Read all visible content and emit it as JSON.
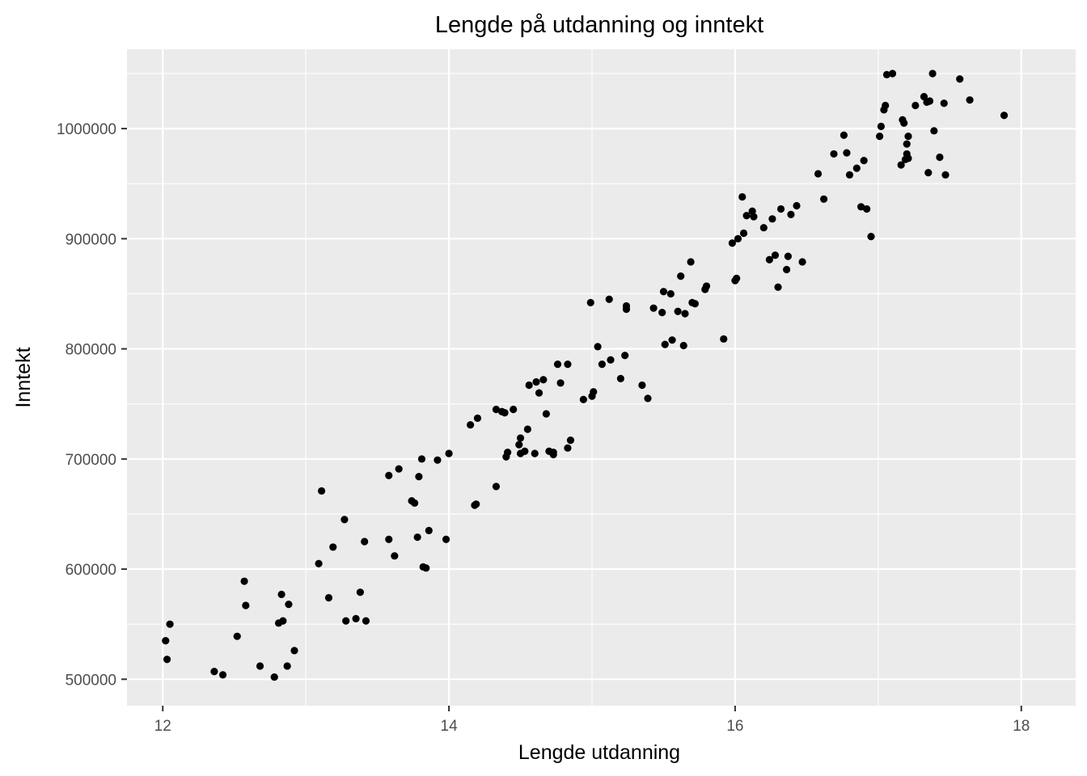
{
  "chart_data": {
    "type": "scatter",
    "title": "Lengde på utdanning og inntekt",
    "xlabel": "Lengde utdanning",
    "ylabel": "Inntekt",
    "xlim": [
      11.75,
      18.38
    ],
    "ylim": [
      476000,
      1072000
    ],
    "x_ticks": [
      12,
      14,
      16,
      18
    ],
    "x_tick_labels": [
      "12",
      "14",
      "16",
      "18"
    ],
    "y_ticks": [
      500000,
      600000,
      700000,
      800000,
      900000,
      1000000
    ],
    "y_tick_labels": [
      "500000",
      "600000",
      "700000",
      "800000",
      "900000",
      "1000000"
    ],
    "grid": true,
    "legend": "none",
    "colors": {
      "panel": "#ebebeb",
      "grid": "#ffffff",
      "point": "#000000"
    },
    "points": [
      [
        12.02,
        535000
      ],
      [
        12.03,
        518000
      ],
      [
        12.05,
        550000
      ],
      [
        12.36,
        507000
      ],
      [
        12.42,
        504000
      ],
      [
        12.52,
        539000
      ],
      [
        12.57,
        589000
      ],
      [
        12.58,
        567000
      ],
      [
        12.68,
        512000
      ],
      [
        12.78,
        502000
      ],
      [
        12.81,
        551000
      ],
      [
        12.83,
        577000
      ],
      [
        12.84,
        553000
      ],
      [
        12.87,
        512000
      ],
      [
        12.88,
        568000
      ],
      [
        12.92,
        526000
      ],
      [
        13.09,
        605000
      ],
      [
        13.11,
        671000
      ],
      [
        13.16,
        574000
      ],
      [
        13.19,
        620000
      ],
      [
        13.27,
        645000
      ],
      [
        13.28,
        553000
      ],
      [
        13.35,
        555000
      ],
      [
        13.38,
        579000
      ],
      [
        13.41,
        625000
      ],
      [
        13.42,
        553000
      ],
      [
        13.58,
        685000
      ],
      [
        13.58,
        627000
      ],
      [
        13.62,
        612000
      ],
      [
        13.65,
        691000
      ],
      [
        13.74,
        662000
      ],
      [
        13.76,
        660000
      ],
      [
        13.78,
        629000
      ],
      [
        13.79,
        684000
      ],
      [
        13.81,
        700000
      ],
      [
        13.82,
        602000
      ],
      [
        13.84,
        601000
      ],
      [
        13.86,
        635000
      ],
      [
        13.92,
        699000
      ],
      [
        13.98,
        627000
      ],
      [
        14.0,
        705000
      ],
      [
        14.15,
        731000
      ],
      [
        14.18,
        658000
      ],
      [
        14.19,
        659000
      ],
      [
        14.2,
        737000
      ],
      [
        14.33,
        745000
      ],
      [
        14.33,
        675000
      ],
      [
        14.37,
        743000
      ],
      [
        14.39,
        742000
      ],
      [
        14.4,
        702000
      ],
      [
        14.41,
        706000
      ],
      [
        14.45,
        745000
      ],
      [
        14.49,
        713000
      ],
      [
        14.5,
        719000
      ],
      [
        14.5,
        705000
      ],
      [
        14.53,
        707000
      ],
      [
        14.55,
        727000
      ],
      [
        14.56,
        767000
      ],
      [
        14.6,
        705000
      ],
      [
        14.61,
        770000
      ],
      [
        14.63,
        760000
      ],
      [
        14.66,
        772000
      ],
      [
        14.68,
        741000
      ],
      [
        14.7,
        707000
      ],
      [
        14.73,
        706000
      ],
      [
        14.73,
        704000
      ],
      [
        14.76,
        786000
      ],
      [
        14.78,
        769000
      ],
      [
        14.83,
        786000
      ],
      [
        14.83,
        710000
      ],
      [
        14.85,
        717000
      ],
      [
        14.94,
        754000
      ],
      [
        14.99,
        842000
      ],
      [
        15.0,
        757000
      ],
      [
        15.01,
        761000
      ],
      [
        15.04,
        802000
      ],
      [
        15.07,
        786000
      ],
      [
        15.12,
        845000
      ],
      [
        15.13,
        790000
      ],
      [
        15.2,
        773000
      ],
      [
        15.23,
        794000
      ],
      [
        15.24,
        839000
      ],
      [
        15.24,
        836000
      ],
      [
        15.35,
        767000
      ],
      [
        15.39,
        755000
      ],
      [
        15.43,
        837000
      ],
      [
        15.49,
        833000
      ],
      [
        15.5,
        852000
      ],
      [
        15.51,
        804000
      ],
      [
        15.55,
        850000
      ],
      [
        15.56,
        808000
      ],
      [
        15.6,
        834000
      ],
      [
        15.62,
        866000
      ],
      [
        15.64,
        803000
      ],
      [
        15.65,
        832000
      ],
      [
        15.69,
        879000
      ],
      [
        15.7,
        842000
      ],
      [
        15.72,
        841000
      ],
      [
        15.79,
        854000
      ],
      [
        15.8,
        857000
      ],
      [
        15.92,
        809000
      ],
      [
        15.98,
        896000
      ],
      [
        16.0,
        862000
      ],
      [
        16.01,
        864000
      ],
      [
        16.02,
        900000
      ],
      [
        16.05,
        938000
      ],
      [
        16.06,
        905000
      ],
      [
        16.08,
        921000
      ],
      [
        16.12,
        925000
      ],
      [
        16.13,
        920000
      ],
      [
        16.2,
        910000
      ],
      [
        16.24,
        881000
      ],
      [
        16.26,
        918000
      ],
      [
        16.28,
        885000
      ],
      [
        16.3,
        856000
      ],
      [
        16.32,
        927000
      ],
      [
        16.36,
        872000
      ],
      [
        16.37,
        884000
      ],
      [
        16.39,
        922000
      ],
      [
        16.43,
        930000
      ],
      [
        16.47,
        879000
      ],
      [
        16.58,
        959000
      ],
      [
        16.62,
        936000
      ],
      [
        16.69,
        977000
      ],
      [
        16.76,
        994000
      ],
      [
        16.78,
        978000
      ],
      [
        16.8,
        958000
      ],
      [
        16.85,
        964000
      ],
      [
        16.88,
        929000
      ],
      [
        16.9,
        971000
      ],
      [
        16.92,
        927000
      ],
      [
        16.95,
        902000
      ],
      [
        17.01,
        993000
      ],
      [
        17.02,
        1002000
      ],
      [
        17.04,
        1017000
      ],
      [
        17.05,
        1021000
      ],
      [
        17.06,
        1049000
      ],
      [
        17.1,
        1050000
      ],
      [
        17.16,
        967000
      ],
      [
        17.17,
        1008000
      ],
      [
        17.18,
        1005000
      ],
      [
        17.19,
        972000
      ],
      [
        17.2,
        977000
      ],
      [
        17.2,
        986000
      ],
      [
        17.21,
        993000
      ],
      [
        17.21,
        973000
      ],
      [
        17.26,
        1021000
      ],
      [
        17.32,
        1029000
      ],
      [
        17.34,
        1024000
      ],
      [
        17.35,
        960000
      ],
      [
        17.36,
        1025000
      ],
      [
        17.38,
        1050000
      ],
      [
        17.39,
        998000
      ],
      [
        17.43,
        974000
      ],
      [
        17.46,
        1023000
      ],
      [
        17.47,
        958000
      ],
      [
        17.57,
        1045000
      ],
      [
        17.64,
        1026000
      ],
      [
        17.88,
        1012000
      ]
    ]
  }
}
